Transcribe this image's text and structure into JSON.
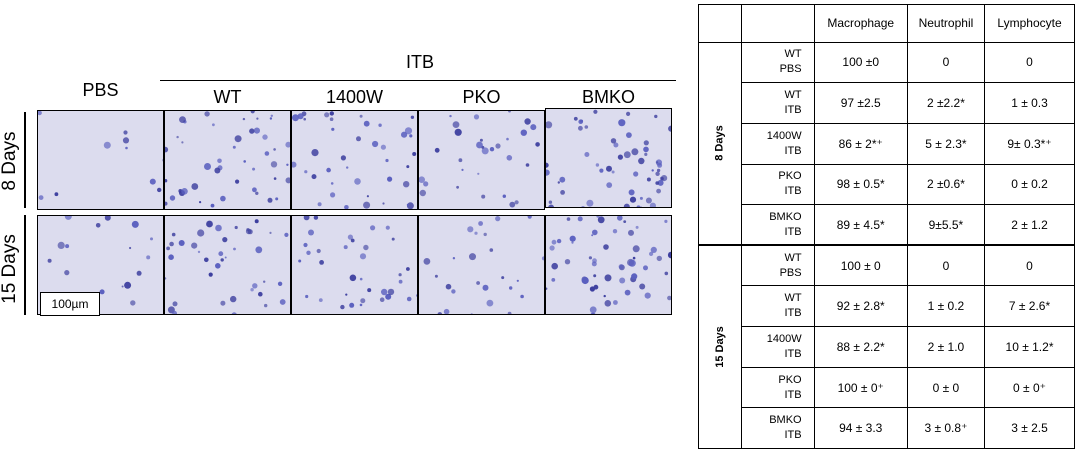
{
  "figure": {
    "col_group_label": "ITB",
    "columns": [
      "PBS",
      "WT",
      "1400W",
      "PKO",
      "BMKO"
    ],
    "rows": [
      "8 Days",
      "15 Days"
    ],
    "scale_bar": "100µm"
  },
  "table": {
    "headers": [
      "Macrophage",
      "Neutrophil",
      "Lymphocyte"
    ],
    "groups": [
      {
        "label": "8 Days",
        "rows": [
          {
            "cond1": "WT",
            "cond2": "PBS",
            "mac": "100 ±0",
            "neu": "0",
            "lym": "0"
          },
          {
            "cond1": "WT",
            "cond2": "ITB",
            "mac": "97 ±2.5",
            "neu": "2 ±2.2*",
            "lym": "1 ± 0.3"
          },
          {
            "cond1": "1400W",
            "cond2": "ITB",
            "mac": "86 ± 2*⁺",
            "neu": "5 ± 2.3*",
            "lym": "9± 0.3*⁺"
          },
          {
            "cond1": "PKO",
            "cond2": "ITB",
            "mac": "98 ± 0.5*",
            "neu": "2 ±0.6*",
            "lym": "0 ± 0.2"
          },
          {
            "cond1": "BMKO",
            "cond2": "ITB",
            "mac": "89 ± 4.5*",
            "neu": "9±5.5*",
            "lym": "2 ± 1.2"
          }
        ]
      },
      {
        "label": "15 Days",
        "rows": [
          {
            "cond1": "WT",
            "cond2": "PBS",
            "mac": "100 ± 0",
            "neu": "0",
            "lym": "0"
          },
          {
            "cond1": "WT",
            "cond2": "ITB",
            "mac": "92 ± 2.8*",
            "neu": "1 ± 0.2",
            "lym": "7 ± 2.6*"
          },
          {
            "cond1": "1400W",
            "cond2": "ITB",
            "mac": "88 ± 2.2*",
            "neu": "2 ± 1.0",
            "lym": "10 ± 1.2*"
          },
          {
            "cond1": "PKO",
            "cond2": "ITB",
            "mac": "100 ± 0⁺",
            "neu": "0 ± 0",
            "lym": "0 ± 0⁺"
          },
          {
            "cond1": "BMKO",
            "cond2": "ITB",
            "mac": "94 ± 3.3",
            "neu": "3 ± 0.8⁺",
            "lym": "3 ± 2.5"
          }
        ]
      }
    ]
  },
  "colors": {
    "background_tile": "#dcdcee",
    "cell": "#5a5fbf",
    "cell_dark": "#3d3f9f"
  }
}
